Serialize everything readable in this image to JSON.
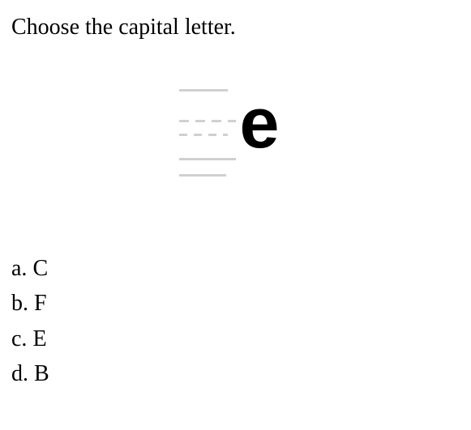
{
  "question": {
    "prompt": "Choose the capital letter.",
    "display_letter": "e",
    "display_letter_font_family": "Arial, Helvetica, sans-serif",
    "display_letter_font_size_pt": 66,
    "display_letter_font_weight": "700",
    "display_letter_color": "#000000",
    "guide_line_color": "#d0d0d0"
  },
  "options": [
    {
      "label": "a.",
      "text": "C"
    },
    {
      "label": "b.",
      "text": "F"
    },
    {
      "label": "c.",
      "text": "E"
    },
    {
      "label": "d.",
      "text": "B"
    }
  ],
  "typography": {
    "body_font_family": "Georgia, 'Times New Roman', serif",
    "body_font_size_pt": 21,
    "body_color": "#000000"
  },
  "background_color": "#ffffff"
}
